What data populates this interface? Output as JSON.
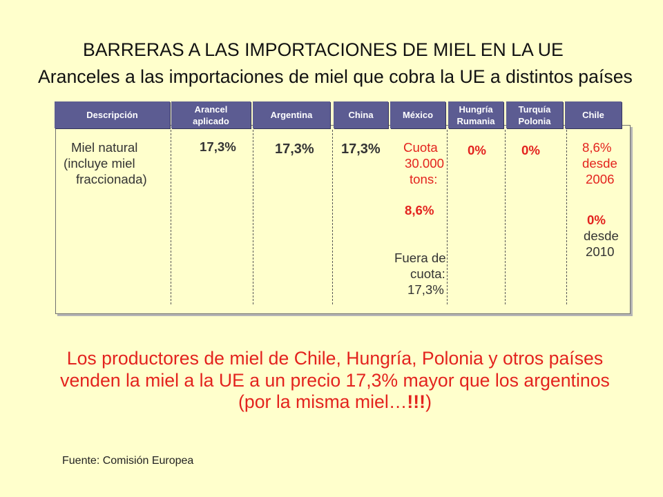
{
  "title": "BARRERAS A LAS IMPORTACIONES DE MIEL EN LA UE",
  "subtitle": "Aranceles a las importaciones de miel que cobra la UE a distintos países",
  "colors": {
    "background": "#FFFFCC",
    "header_fill": "#5C5C92",
    "emphasis_red": "#E3231E",
    "text_dark": "#333333"
  },
  "table": {
    "headers": [
      {
        "lines": [
          "Descripción"
        ]
      },
      {
        "lines": [
          "Arancel",
          "aplicado"
        ]
      },
      {
        "lines": [
          "Argentina"
        ]
      },
      {
        "lines": [
          "China"
        ]
      },
      {
        "lines": [
          "México"
        ]
      },
      {
        "lines": [
          "Hungría",
          "Rumania"
        ]
      },
      {
        "lines": [
          "Turquía",
          "Polonia"
        ]
      },
      {
        "lines": [
          "Chile"
        ]
      }
    ],
    "row": {
      "description": [
        "Miel natural",
        "(incluye miel",
        "fraccionada)"
      ],
      "arancel_aplicado": "17,3%",
      "argentina": "17,3%",
      "china": "17,3%",
      "mexico": {
        "in_quota": [
          "Cuota",
          "30.000",
          "tons:"
        ],
        "in_quota_rate": "8,6%",
        "out_of_quota": [
          "Fuera de",
          "cuota:",
          "17,3%"
        ]
      },
      "hungria_rumania": "0%",
      "turquia_polonia": "0%",
      "chile": {
        "from_2006": [
          "8,6%",
          "desde",
          "2006"
        ],
        "from_2010": [
          "0%",
          "desde",
          "2010"
        ]
      }
    }
  },
  "conclusion": {
    "line1": "Los productores de miel de Chile, Hungría, Polonia y otros países",
    "line2": "venden la miel a la UE a un precio 17,3% mayor que los argentinos",
    "line3_text": "(por la misma miel…",
    "line3_emphasis": "!!!",
    "line3_close": ")"
  },
  "source": "Fuente: Comisión Europea"
}
